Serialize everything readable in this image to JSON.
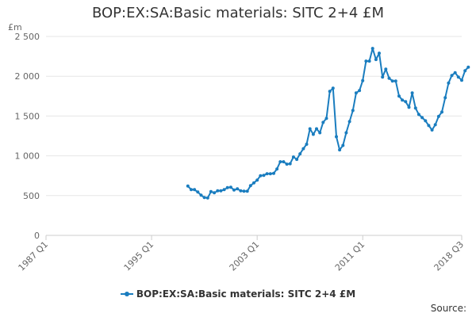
{
  "chart_data": {
    "type": "line",
    "title": "BOP:EX:SA:Basic materials: SITC 2+4 £M",
    "ylabel": "£m",
    "ylim": [
      0,
      2500
    ],
    "yticks": [
      0,
      500,
      1000,
      1500,
      2000,
      2500
    ],
    "ytick_labels": [
      "0",
      "500",
      "1 000",
      "1 500",
      "2 000",
      "2 500"
    ],
    "xticks": [
      {
        "label": "1987 Q1",
        "t": 0
      },
      {
        "label": "1995 Q1",
        "t": 32
      },
      {
        "label": "2003 Q1",
        "t": 64
      },
      {
        "label": "2011 Q1",
        "t": 96
      },
      {
        "label": "2018 Q3",
        "t": 126
      }
    ],
    "x_start": "1987 Q1",
    "x_end": "2018 Q3",
    "series": [
      {
        "name": "BOP:EX:SA:Basic materials: SITC 2+4 £M",
        "color": "#1a7dbf",
        "start_quarter_index": 43,
        "values": [
          620,
          575,
          575,
          545,
          505,
          475,
          470,
          550,
          535,
          560,
          560,
          575,
          600,
          605,
          570,
          585,
          560,
          555,
          555,
          625,
          660,
          695,
          750,
          755,
          775,
          775,
          780,
          835,
          925,
          925,
          895,
          900,
          985,
          955,
          1025,
          1090,
          1145,
          1340,
          1270,
          1340,
          1290,
          1420,
          1470,
          1810,
          1850,
          1240,
          1075,
          1130,
          1290,
          1430,
          1570,
          1790,
          1820,
          1945,
          2190,
          2190,
          2350,
          2210,
          2290,
          1990,
          2090,
          1975,
          1940,
          1940,
          1750,
          1700,
          1680,
          1610,
          1790,
          1600,
          1520,
          1480,
          1440,
          1380,
          1325,
          1390,
          1495,
          1550,
          1730,
          1915,
          2010,
          2045,
          1990,
          1950,
          2070,
          2115
        ]
      }
    ],
    "legend": "bottom-center"
  },
  "source_label": "Source:"
}
